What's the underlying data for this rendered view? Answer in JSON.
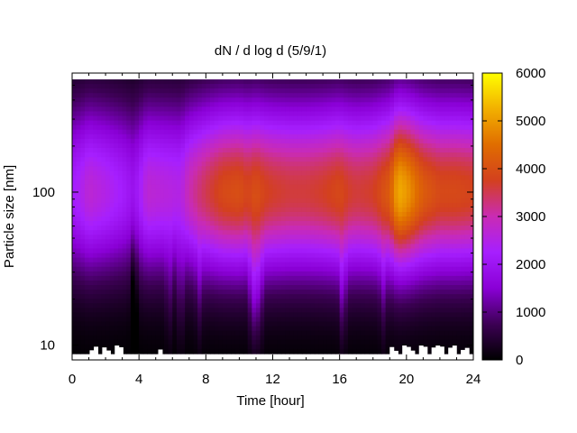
{
  "chart_data": {
    "type": "heatmap",
    "title": "dN / d log d (5/9/1)",
    "xlabel": "Time [hour]",
    "ylabel": "Particle size [nm]",
    "x_range": [
      0,
      24
    ],
    "x_ticks": [
      0,
      4,
      8,
      12,
      16,
      20,
      24
    ],
    "y_scale": "log",
    "y_range": [
      8,
      600
    ],
    "y_ticks": [
      10,
      100
    ],
    "colorbar": {
      "range": [
        0,
        6000
      ],
      "ticks": [
        0,
        1000,
        2000,
        3000,
        4000,
        5000,
        6000
      ],
      "colormap": [
        "#000000",
        "#3c0054",
        "#8a00d6",
        "#a61fff",
        "#c92bb4",
        "#d3401f",
        "#e06d00",
        "#f2b000",
        "#ffff00"
      ]
    },
    "mode_diameter_nm": 100,
    "concentration_by_time": {
      "hours": [
        0,
        0.5,
        1,
        2,
        3,
        3.7,
        4.5,
        5.5,
        6.5,
        7,
        8,
        9,
        10,
        10.5,
        11,
        11.5,
        12,
        13,
        14,
        15,
        16,
        16.5,
        17,
        18,
        19,
        19.5,
        20,
        21,
        22,
        23,
        24
      ],
      "peak_value": [
        2200,
        2400,
        2700,
        2500,
        2200,
        1900,
        2700,
        2600,
        2500,
        3000,
        3500,
        3900,
        4000,
        3800,
        4000,
        3800,
        3700,
        3600,
        3600,
        3700,
        3900,
        3700,
        3600,
        3700,
        4200,
        5200,
        5000,
        4200,
        3900,
        3900,
        3800
      ]
    },
    "missing_data": "white gaps below ~9 nm at t≈0.8–3 h, ≈5 h, and ≈19–24 h",
    "grid": false,
    "legend": "colorbar-right"
  }
}
